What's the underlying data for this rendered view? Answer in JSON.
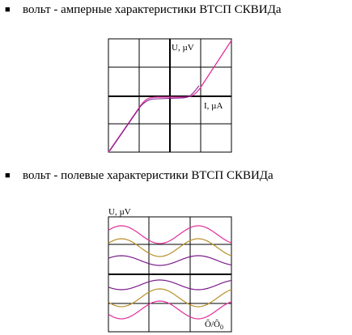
{
  "sections": [
    {
      "heading": "вольт - амперные характеристики ВТСП СКВИДа",
      "y_label": "U,  µV",
      "x_label": "I,  µA"
    },
    {
      "heading": "вольт - полевые характеристики ВТСП СКВИДа",
      "y_label": "U, µV",
      "x_label": "Ô/Ô",
      "x_label_sub": "0"
    }
  ]
}
